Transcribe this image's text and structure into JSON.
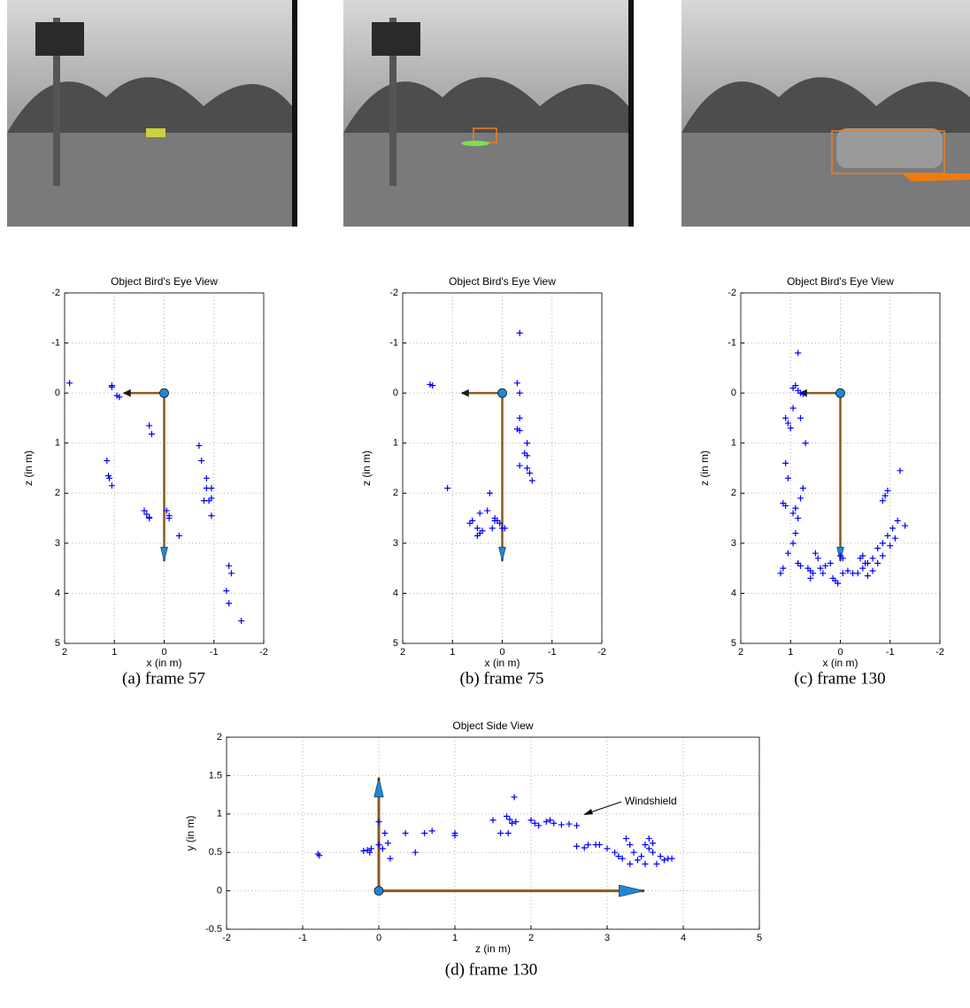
{
  "chart_data": [
    {
      "type": "scatter",
      "title": "Object Bird's Eye View",
      "x_label": "x (in m)",
      "y_label": "z (in m)",
      "caption": "(a) frame 57",
      "xlim": [
        2,
        -2
      ],
      "xticks": [
        2,
        1,
        0,
        -1,
        -2
      ],
      "ylim": [
        5,
        -2
      ],
      "yticks": [
        -2,
        -1,
        0,
        1,
        2,
        3,
        4,
        5
      ],
      "grid": true,
      "series": [
        {
          "color": "#0000ff",
          "x": [
            1.9,
            1.05,
            1.05,
            0.95,
            0.9,
            1.15,
            1.12,
            1.1,
            1.05,
            0.3,
            0.25,
            0.4,
            0.35,
            0.3,
            0.3,
            -0.05,
            -0.1,
            -0.1,
            -0.3,
            -0.7,
            -0.75,
            -0.85,
            -0.85,
            -0.8,
            -0.95,
            -0.95,
            -0.9,
            -0.95,
            -1.3,
            -1.35,
            -1.25,
            -1.3,
            -1.55
          ],
          "values": [
            -0.2,
            -0.15,
            -0.12,
            0.05,
            0.08,
            1.35,
            1.65,
            1.7,
            1.85,
            0.65,
            0.82,
            2.35,
            2.42,
            2.5,
            2.48,
            2.35,
            2.45,
            2.5,
            2.85,
            1.05,
            1.35,
            1.7,
            1.9,
            2.15,
            1.9,
            2.1,
            2.15,
            2.45,
            3.45,
            3.6,
            3.95,
            4.2,
            4.55
          ]
        }
      ]
    },
    {
      "type": "scatter",
      "title": "Object Bird's Eye View",
      "x_label": "x (in m)",
      "y_label": "z (in m)",
      "caption": "(b) frame 75",
      "xlim": [
        2,
        -2
      ],
      "xticks": [
        2,
        1,
        0,
        -1,
        -2
      ],
      "ylim": [
        5,
        -2
      ],
      "yticks": [
        -2,
        -1,
        0,
        1,
        2,
        3,
        4,
        5
      ],
      "grid": true,
      "series": [
        {
          "color": "#0000ff",
          "x": [
            1.4,
            1.45,
            1.1,
            -0.35,
            -0.3,
            -0.35,
            -0.35,
            -0.35,
            -0.3,
            -0.5,
            -0.45,
            -0.5,
            -0.35,
            -0.5,
            -0.55,
            -0.6,
            0.25,
            0.3,
            0.6,
            0.65,
            0.45,
            0.5,
            0.45,
            0.5,
            0.4,
            0.2,
            0.15,
            0.1,
            0.05,
            0.0,
            -0.05,
            0.15
          ],
          "values": [
            -0.15,
            -0.17,
            1.9,
            -1.2,
            -0.2,
            0.0,
            0.5,
            0.75,
            0.72,
            1.0,
            1.2,
            1.25,
            1.45,
            1.5,
            1.6,
            1.75,
            2.0,
            2.35,
            2.55,
            2.6,
            2.4,
            2.7,
            2.8,
            2.85,
            2.75,
            2.7,
            2.5,
            2.55,
            2.6,
            2.7,
            2.7,
            2.55
          ]
        }
      ]
    },
    {
      "type": "scatter",
      "title": "Object Bird's Eye View",
      "x_label": "x (in m)",
      "y_label": "z (in m)",
      "caption": "(c) frame 130",
      "xlim": [
        2,
        -2
      ],
      "xticks": [
        2,
        1,
        0,
        -1,
        -2
      ],
      "ylim": [
        5,
        -2
      ],
      "yticks": [
        -2,
        -1,
        0,
        1,
        2,
        3,
        4,
        5
      ],
      "grid": true,
      "series": [
        {
          "color": "#0000ff",
          "x": [
            0.85,
            0.9,
            0.95,
            0.85,
            0.8,
            0.75,
            1.1,
            1.05,
            1.0,
            0.95,
            0.8,
            0.7,
            1.1,
            1.05,
            1.15,
            1.1,
            0.75,
            0.8,
            0.9,
            0.95,
            0.85,
            0.9,
            0.95,
            1.05,
            1.15,
            1.2,
            0.85,
            0.8,
            0.65,
            0.6,
            0.55,
            0.6,
            0.4,
            0.35,
            0.3,
            0.2,
            0.15,
            0.1,
            0.05,
            -0.05,
            -0.15,
            0.5,
            0.45,
            -0.25,
            -0.35,
            -0.45,
            -0.55,
            -0.65,
            -0.75,
            -0.85,
            -0.95,
            -1.05,
            -1.15,
            -0.55,
            -0.65,
            -0.75,
            -0.85,
            -1.0,
            -1.1,
            -1.3,
            -1.2,
            -0.95,
            -0.9,
            -0.85,
            -0.5,
            -0.45,
            -0.4,
            0.0,
            -0.05
          ],
          "values": [
            -0.8,
            -0.15,
            -0.1,
            -0.05,
            0.0,
            0.02,
            0.5,
            0.6,
            0.7,
            0.3,
            0.5,
            1.0,
            1.4,
            1.7,
            2.2,
            2.25,
            1.9,
            2.1,
            2.3,
            2.4,
            2.5,
            2.8,
            3.0,
            3.2,
            3.5,
            3.6,
            3.4,
            3.45,
            3.5,
            3.55,
            3.6,
            3.7,
            3.5,
            3.6,
            3.45,
            3.4,
            3.7,
            3.75,
            3.8,
            3.6,
            3.55,
            3.2,
            3.3,
            3.6,
            3.6,
            3.5,
            3.4,
            3.3,
            3.1,
            3.0,
            2.85,
            2.7,
            2.55,
            3.65,
            3.55,
            3.4,
            3.25,
            3.05,
            2.9,
            2.65,
            1.55,
            1.95,
            2.05,
            2.15,
            3.4,
            3.25,
            3.3,
            3.25,
            3.3
          ]
        }
      ]
    },
    {
      "type": "scatter",
      "title": "Object Side View",
      "x_label": "z (in m)",
      "y_label": "y (in m)",
      "caption": "(d) frame 130",
      "annotation": "Windshield",
      "xlim": [
        -2,
        5
      ],
      "xticks": [
        -2,
        -1,
        0,
        1,
        2,
        3,
        4,
        5
      ],
      "ylim": [
        -0.5,
        2
      ],
      "yticks": [
        -0.5,
        0,
        0.5,
        1,
        1.5,
        2
      ],
      "grid": true,
      "series": [
        {
          "color": "#0000ff",
          "x": [
            -0.8,
            -0.78,
            -0.2,
            -0.15,
            -0.1,
            -0.12,
            0.0,
            0.0,
            0.05,
            0.08,
            0.12,
            0.15,
            0.35,
            0.48,
            0.6,
            0.7,
            1.0,
            1.0,
            1.5,
            1.6,
            1.68,
            1.7,
            1.72,
            1.75,
            1.78,
            1.8,
            2.0,
            2.05,
            2.1,
            2.2,
            2.25,
            2.3,
            2.4,
            2.5,
            2.6,
            2.6,
            2.7,
            2.75,
            2.85,
            2.9,
            3.0,
            3.1,
            3.15,
            3.2,
            3.3,
            3.35,
            3.4,
            3.45,
            3.5,
            3.55,
            3.6,
            3.65,
            3.55,
            3.6,
            3.7,
            3.75,
            3.8,
            3.85,
            3.5,
            3.25,
            3.3
          ],
          "values": [
            0.48,
            0.46,
            0.52,
            0.53,
            0.55,
            0.5,
            0.9,
            0.6,
            0.55,
            0.75,
            0.62,
            0.42,
            0.75,
            0.5,
            0.75,
            0.78,
            0.72,
            0.75,
            0.92,
            0.75,
            0.97,
            0.75,
            0.93,
            0.88,
            1.22,
            0.9,
            0.92,
            0.88,
            0.85,
            0.9,
            0.92,
            0.88,
            0.86,
            0.87,
            0.85,
            0.58,
            0.56,
            0.6,
            0.6,
            0.6,
            0.55,
            0.5,
            0.45,
            0.42,
            0.6,
            0.5,
            0.4,
            0.45,
            0.6,
            0.55,
            0.5,
            0.35,
            0.68,
            0.62,
            0.45,
            0.4,
            0.42,
            0.42,
            0.35,
            0.68,
            0.35
          ]
        }
      ]
    }
  ]
}
